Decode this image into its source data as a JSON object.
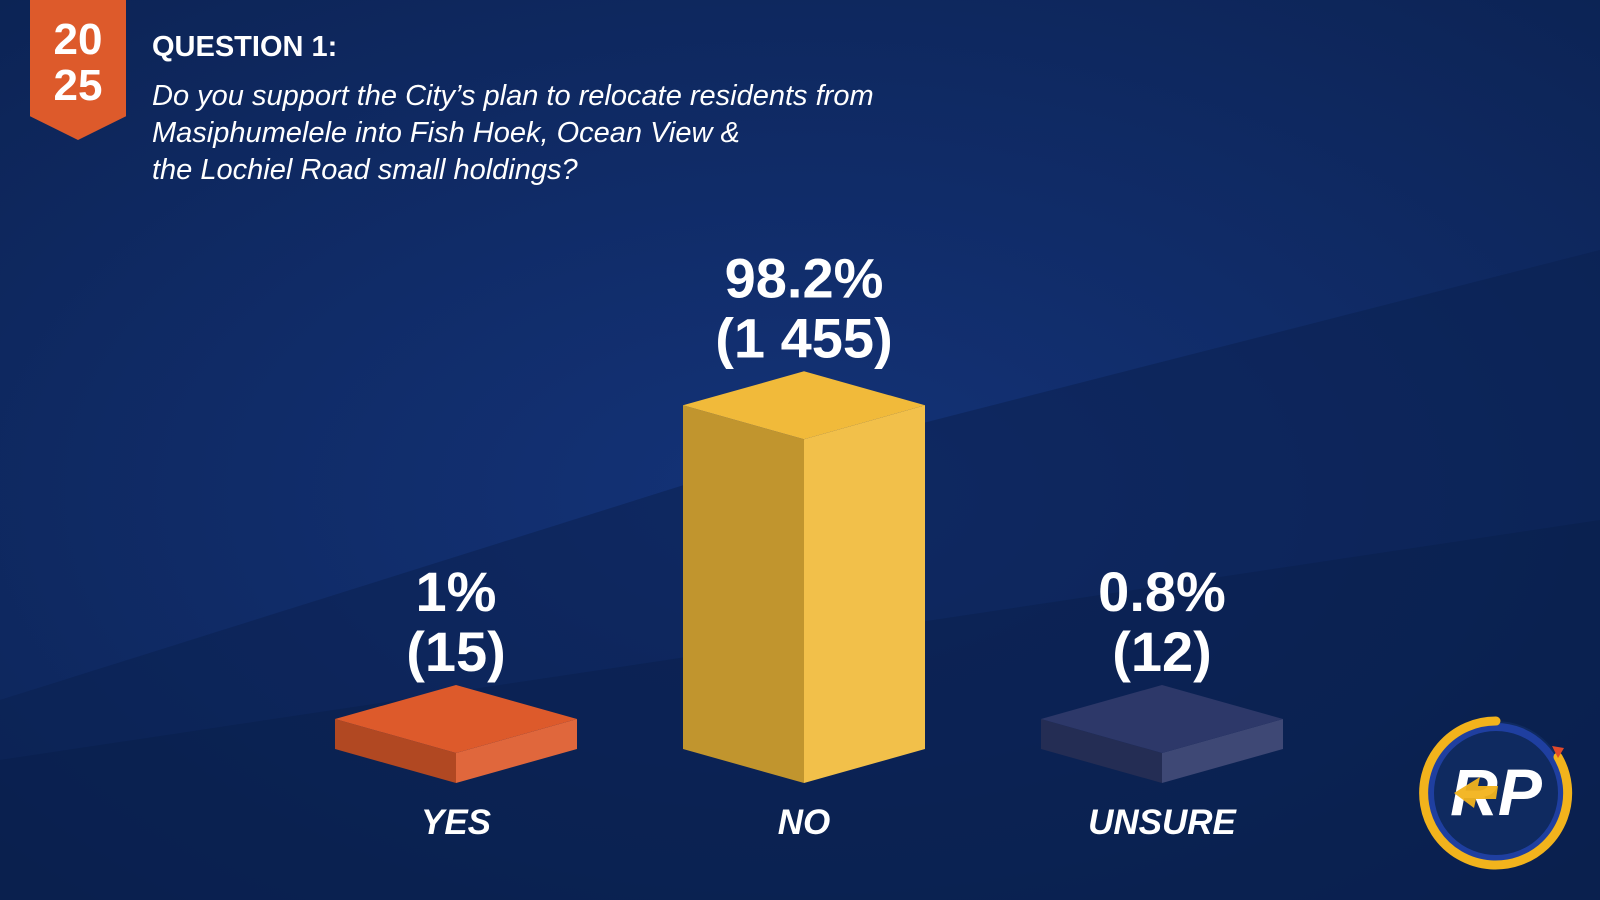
{
  "badge": {
    "year_top": "20",
    "year_bottom": "25"
  },
  "question": {
    "title": "QUESTION 1:",
    "lines": [
      "Do you support the City’s plan to relocate residents from",
      "Masiphumelele into Fish Hoek, Ocean View &",
      "the Lochiel Road small holdings?"
    ]
  },
  "colors": {
    "background": "#0f2a60",
    "badge": "#dd5a2b",
    "yes": "#dd5a2b",
    "no": "#f1ba3a",
    "unsure": "#2d3869"
  },
  "chart_data": {
    "type": "bar",
    "categories": [
      "YES",
      "NO",
      "UNSURE"
    ],
    "values": [
      1,
      98.2,
      0.8
    ],
    "counts": [
      15,
      1455,
      12
    ],
    "value_labels": [
      "1%",
      "98.2%",
      "0.8%"
    ],
    "count_labels": [
      "(15)",
      "(1 455)",
      "(12)"
    ],
    "title": "QUESTION 1:",
    "xlabel": "",
    "ylabel": "",
    "grid": false,
    "bar_style": "3d-box"
  },
  "logo": {
    "text": "RP",
    "icon": "rp-logo-icon"
  }
}
